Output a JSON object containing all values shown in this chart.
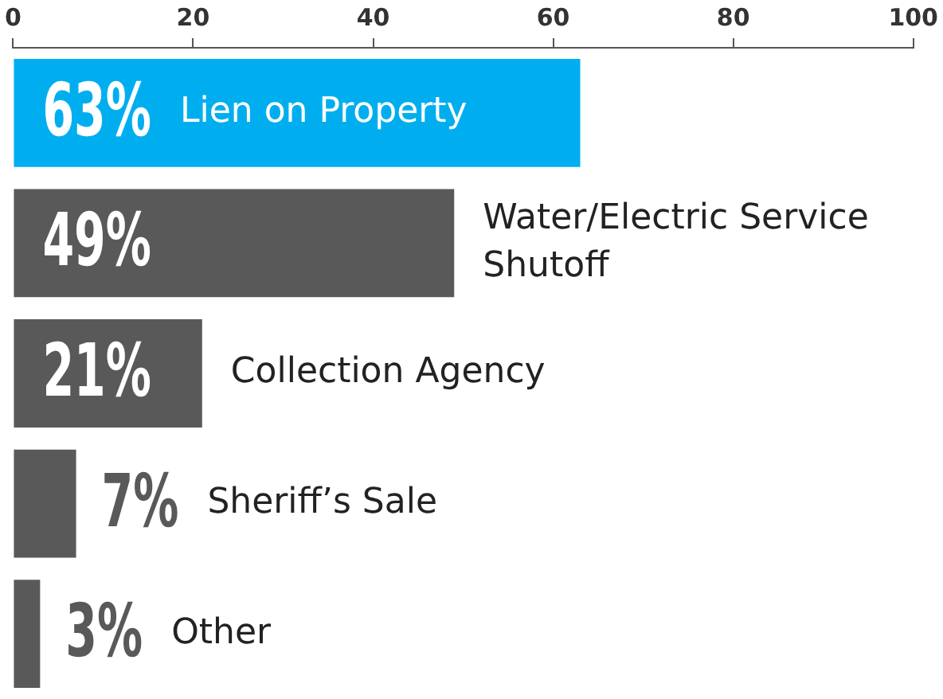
{
  "chart_data": {
    "type": "bar",
    "orientation": "horizontal",
    "categories": [
      "Lien on Property",
      "Water/Electric Service Shutoff",
      "Collection Agency",
      "Sheriff’s Sale",
      "Other"
    ],
    "values": [
      63,
      49,
      21,
      7,
      3
    ],
    "colors": [
      "#00aeef",
      "#595959",
      "#595959",
      "#595959",
      "#595959"
    ],
    "value_labels": [
      "63%",
      "49%",
      "21%",
      "7%",
      "3%"
    ],
    "xlim": [
      0,
      100
    ],
    "xticks": [
      0,
      20,
      40,
      60,
      80,
      100
    ],
    "grid": false,
    "legend": false
  }
}
